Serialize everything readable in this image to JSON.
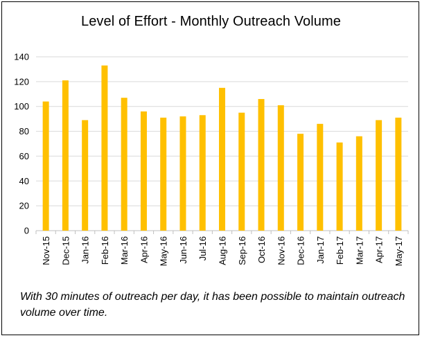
{
  "chart_data": {
    "type": "bar",
    "title": "Level of Effort - Monthly Outreach Volume",
    "xlabel": "",
    "ylabel": "",
    "categories": [
      "Nov-15",
      "Dec-15",
      "Jan-16",
      "Feb-16",
      "Mar-16",
      "Apr-16",
      "May-16",
      "Jun-16",
      "Jul-16",
      "Aug-16",
      "Sep-16",
      "Oct-16",
      "Nov-16",
      "Dec-16",
      "Jan-17",
      "Feb-17",
      "Mar-17",
      "Apr-17",
      "May-17"
    ],
    "values": [
      104,
      121,
      89,
      133,
      107,
      96,
      91,
      92,
      93,
      115,
      95,
      106,
      101,
      78,
      86,
      71,
      76,
      89,
      91
    ],
    "ylim": [
      0,
      140
    ],
    "yticks": [
      0,
      20,
      40,
      60,
      80,
      100,
      120,
      140
    ],
    "grid": true,
    "legend": "none",
    "bar_color": "#FFC000",
    "grid_color": "#d9d9d9"
  },
  "caption": "With 30 minutes of outreach per day, it has been possible to maintain outreach volume over time."
}
